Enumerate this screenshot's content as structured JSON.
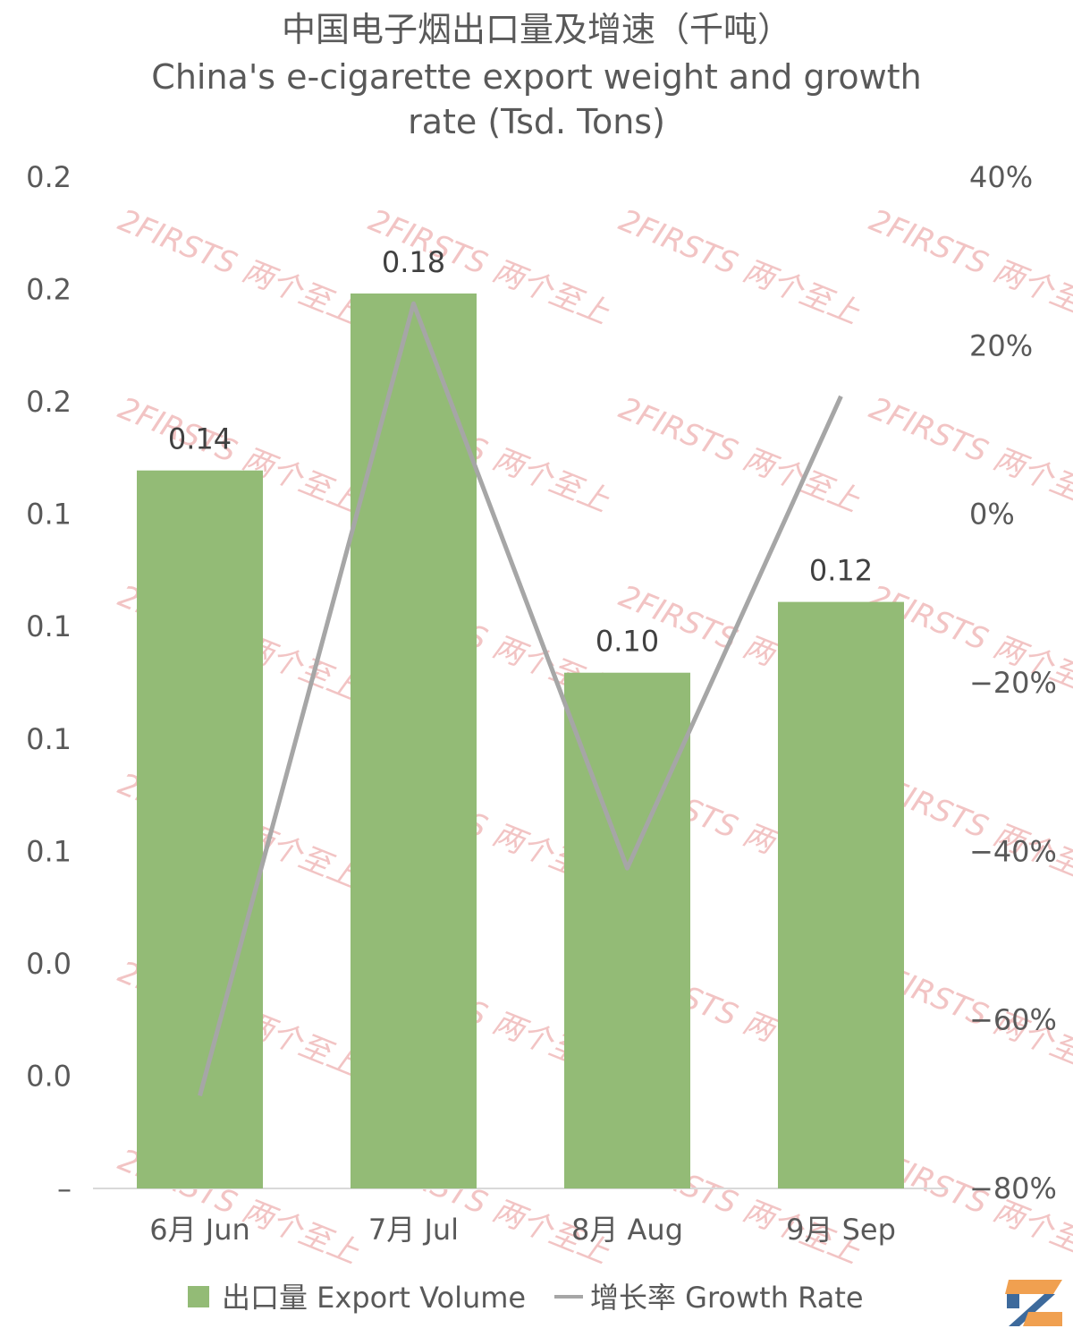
{
  "chart_data": {
    "type": "bar+line",
    "title": "中国电子烟出口量及增速（千吨）",
    "subtitle_lines": [
      "China's e-cigarette export weight and growth",
      "rate (Tsd. Tons)"
    ],
    "categories": [
      "6月 Jun",
      "7月 Jul",
      "8月 Aug",
      "9月 Sep"
    ],
    "series": [
      {
        "name": "出口量 Export Volume",
        "type": "bar",
        "axis": "left",
        "color": "#93bb76",
        "values": [
          0.142,
          0.177,
          0.102,
          0.116
        ],
        "labels": [
          "0.14",
          "0.18",
          "0.10",
          "0.12"
        ]
      },
      {
        "name": "增长率 Growth Rate",
        "type": "line",
        "axis": "right",
        "color": "#a6a6a6",
        "values": [
          -0.69,
          0.25,
          -0.42,
          0.14
        ]
      }
    ],
    "y_left": {
      "ylim": [
        0,
        0.2
      ],
      "tick_labels": [
        "–",
        "0.0",
        "0.0",
        "0.1",
        "0.1",
        "0.1",
        "0.1",
        "0.2",
        "0.2",
        "0.2"
      ]
    },
    "y_right": {
      "ylim": [
        -0.8,
        0.4
      ],
      "tick_labels": [
        "−80%",
        "−60%",
        "−40%",
        "−20%",
        "0%",
        "20%",
        "40%"
      ]
    },
    "grid": false,
    "legend_position": "bottom"
  },
  "watermark": {
    "text": "2FIRSTS 两个至上",
    "color": "#f2c4c4"
  },
  "logo": {
    "name": "2firsts-logo-icon",
    "colors": [
      "#f0a050",
      "#3d6a9c"
    ]
  }
}
